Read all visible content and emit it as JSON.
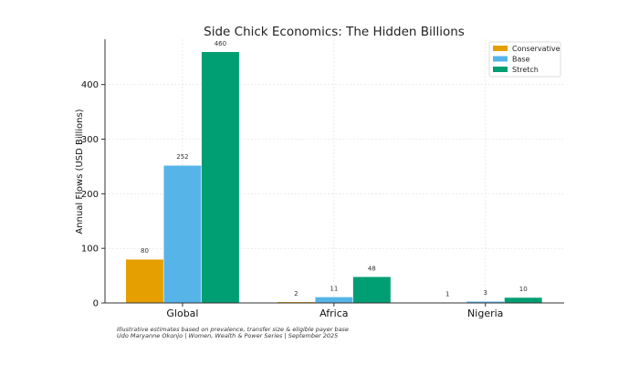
{
  "chart_data": {
    "type": "bar",
    "title": "Side Chick Economics: The Hidden Billions",
    "xlabel": "",
    "ylabel": "Annual Flows (USD Billions)",
    "categories": [
      "Global",
      "Africa",
      "Nigeria"
    ],
    "series": [
      {
        "name": "Conservative",
        "values": [
          80,
          2,
          1
        ],
        "color": "#E69F00"
      },
      {
        "name": "Base",
        "values": [
          252,
          11,
          3
        ],
        "color": "#56B4E9"
      },
      {
        "name": "Stretch",
        "values": [
          460,
          48,
          10
        ],
        "color": "#009E73"
      }
    ],
    "yticks": [
      0,
      100,
      200,
      300,
      400
    ],
    "ylim": [
      0,
      483
    ],
    "grid": true,
    "legend_position": "top-right",
    "footnotes": [
      "Illustrative estimates based on prevalence, transfer size & eligible payer base",
      "Udo Maryanne Okonjo | Women, Wealth & Power Series | September 2025"
    ]
  }
}
